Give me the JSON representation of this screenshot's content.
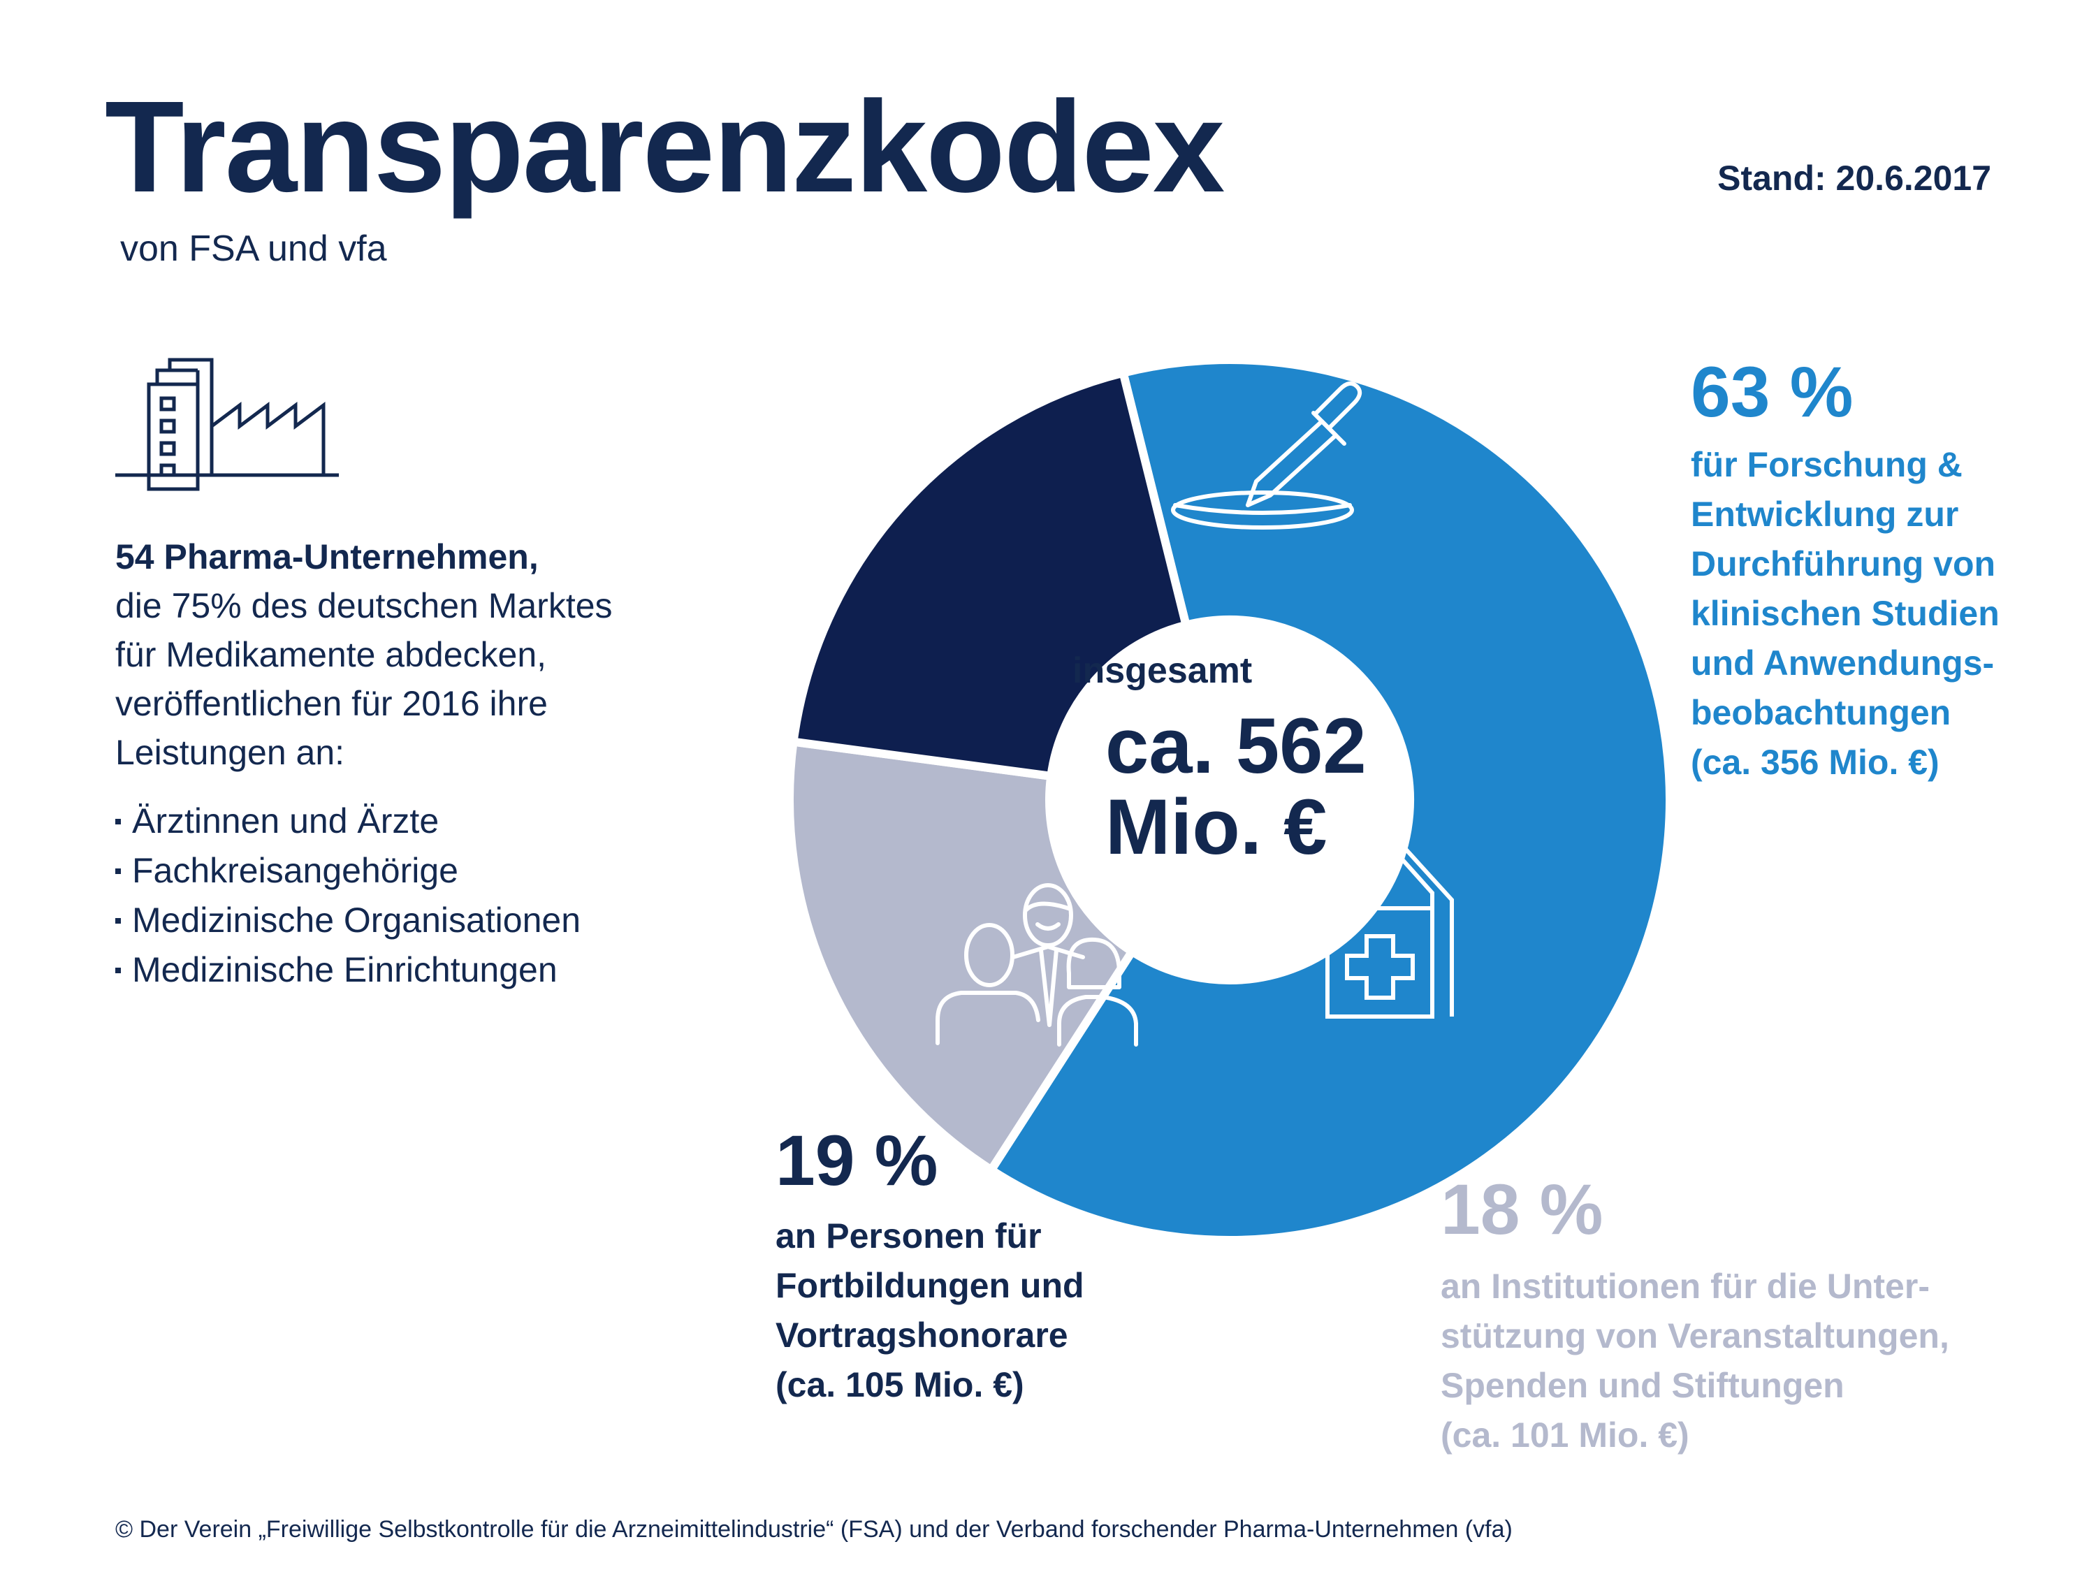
{
  "header": {
    "title": "Transparenzkodex",
    "subtitle": "von FSA und vfa",
    "stand": "Stand: 20.6.2017"
  },
  "intro": {
    "lead": "54 Pharma-Unternehmen,",
    "lines": [
      "die 75% des deutschen Marktes",
      "für Medikamente abdecken,",
      "veröffentlichen für 2016 ihre",
      "Leistungen an:"
    ],
    "bullets": [
      "Ärztinnen und Ärzte",
      "Fachkreisangehörige",
      "Medizinische Organisationen",
      "Medizinische Einrichtungen"
    ]
  },
  "center": {
    "small": "insgesamt",
    "line1": "ca. 562",
    "line2": "Mio. €"
  },
  "segments": {
    "forschung": {
      "pct": "63 %",
      "lines": [
        "für Forschung &",
        "Entwicklung zur",
        "Durchführung von",
        "klinischen Studien",
        "und Anwendungs-",
        "beobachtungen",
        "(ca. 356 Mio. €)"
      ]
    },
    "personen": {
      "pct": "19 %",
      "lines": [
        "an Personen für",
        "Fortbildungen und",
        "Vortragshonorare",
        "(ca. 105 Mio. €)"
      ]
    },
    "institutionen": {
      "pct": "18 %",
      "lines": [
        "an Institutionen für die Unter-",
        "stützung von Veranstaltungen,",
        "Spenden und Stiftungen",
        "(ca. 101 Mio. €)"
      ]
    }
  },
  "chart_data": {
    "type": "pie",
    "categories": [
      "Forschung & Entwicklung",
      "Institutionen",
      "Personen"
    ],
    "values": [
      63,
      18,
      19
    ],
    "amounts_mio_eur": [
      356,
      101,
      105
    ],
    "colors": [
      "#1f86cc",
      "#b4b9cd",
      "#0e1f4f"
    ],
    "icons": [
      "pipette-petri-icon",
      "hospital-icon",
      "people-group-icon"
    ],
    "total": "ca. 562 Mio. €",
    "legend": "none"
  },
  "footer": "© Der Verein „Freiwillige Selbstkontrolle für die Arzneimittelindustrie“ (FSA) und der Verband forschender Pharma-Unternehmen (vfa)"
}
